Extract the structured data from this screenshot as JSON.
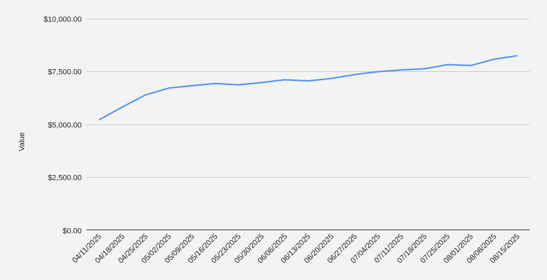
{
  "chart_data": {
    "type": "line",
    "title": "",
    "xlabel": "",
    "ylabel": "Value",
    "ylim": [
      0,
      10000
    ],
    "yticks": [
      0,
      2500,
      5000,
      7500,
      10000
    ],
    "ytick_labels": [
      "$0.00",
      "$2,500.00",
      "$5,000.00",
      "$7,500.00",
      "$10,000.00"
    ],
    "grid": true,
    "legend": "none",
    "line_color": "#4d8ef7",
    "categories": [
      "04/11/2025",
      "04/18/2025",
      "04/25/2025",
      "05/02/2025",
      "05/09/2025",
      "05/16/2025",
      "05/23/2025",
      "05/30/2025",
      "06/06/2025",
      "06/13/2025",
      "06/20/2025",
      "06/27/2025",
      "07/04/2025",
      "07/11/2025",
      "07/18/2025",
      "07/25/2025",
      "08/01/2025",
      "08/08/2025",
      "08/15/2025"
    ],
    "series": [
      {
        "values": [
          5214,
          5813,
          6388,
          6714,
          6824,
          6932,
          6867,
          6975,
          7105,
          7055,
          7170,
          7356,
          7486,
          7574,
          7627,
          7822,
          7780,
          8083,
          8246
        ]
      }
    ]
  }
}
